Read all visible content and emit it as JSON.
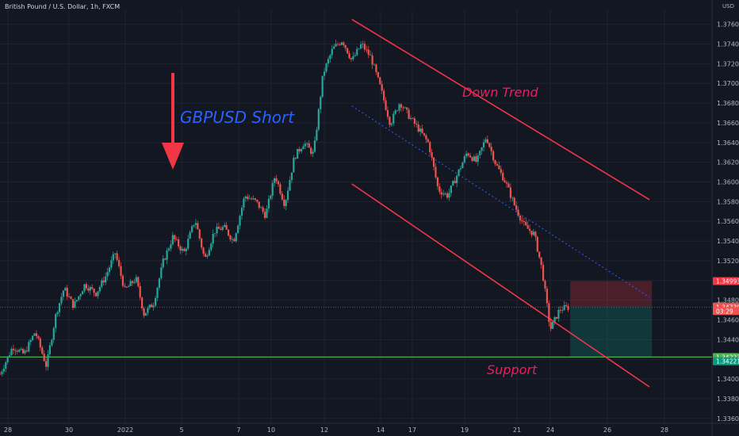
{
  "header": {
    "symbol": "British Pound / U.S. Dollar, 1h, FXCM",
    "currency": "USD"
  },
  "colors": {
    "background": "#131722",
    "grid": "#1f2330",
    "up": "#26a69a",
    "down": "#ef5350",
    "channel": "#f23645",
    "support": "#4caf50",
    "title": "#2962ff",
    "label": "#e91e63",
    "arrow": "#f23645"
  },
  "icons": {
    "scale": "usd-currency-badge"
  },
  "chart_data": {
    "type": "candlestick",
    "title": "GBPUSD Short",
    "x_ticks": [
      "28",
      "30",
      "2022",
      "5",
      "7",
      "10",
      "12",
      "14",
      "17",
      "19",
      "21",
      "24",
      "26",
      "28"
    ],
    "y_ticks": [
      "1.37600",
      "1.37400",
      "1.37200",
      "1.37000",
      "1.36800",
      "1.36600",
      "1.36400",
      "1.36200",
      "1.36000",
      "1.35800",
      "1.35600",
      "1.35400",
      "1.35200",
      "1.35000",
      "1.34800",
      "1.34600",
      "1.34400",
      "1.34200",
      "1.34000",
      "1.33800",
      "1.33600"
    ],
    "ylim": [
      1.3355,
      1.3775
    ],
    "price_path": [
      [
        0,
        1.3405
      ],
      [
        0.8,
        1.3433
      ],
      [
        1.5,
        1.3425
      ],
      [
        2.2,
        1.3448
      ],
      [
        2.9,
        1.3413
      ],
      [
        3.5,
        1.3466
      ],
      [
        4.0,
        1.3492
      ],
      [
        4.6,
        1.3474
      ],
      [
        5.3,
        1.3496
      ],
      [
        6.0,
        1.3487
      ],
      [
        6.6,
        1.3504
      ],
      [
        7.2,
        1.3528
      ],
      [
        7.8,
        1.349
      ],
      [
        8.5,
        1.3502
      ],
      [
        9.0,
        1.3466
      ],
      [
        9.6,
        1.3477
      ],
      [
        10.2,
        1.3519
      ],
      [
        10.8,
        1.3544
      ],
      [
        11.5,
        1.3528
      ],
      [
        12.2,
        1.3562
      ],
      [
        12.8,
        1.3521
      ],
      [
        13.4,
        1.355
      ],
      [
        14.0,
        1.3554
      ],
      [
        14.6,
        1.354
      ],
      [
        15.3,
        1.3586
      ],
      [
        16.0,
        1.358
      ],
      [
        16.6,
        1.3566
      ],
      [
        17.2,
        1.3607
      ],
      [
        17.8,
        1.3577
      ],
      [
        18.4,
        1.3625
      ],
      [
        19.0,
        1.364
      ],
      [
        19.6,
        1.3628
      ],
      [
        20.2,
        1.371
      ],
      [
        20.8,
        1.3735
      ],
      [
        21.4,
        1.3744
      ],
      [
        22.0,
        1.3723
      ],
      [
        22.6,
        1.374
      ],
      [
        23.2,
        1.3726
      ],
      [
        23.8,
        1.3695
      ],
      [
        24.4,
        1.3659
      ],
      [
        25.0,
        1.3681
      ],
      [
        25.6,
        1.3666
      ],
      [
        26.2,
        1.3653
      ],
      [
        26.8,
        1.3639
      ],
      [
        27.4,
        1.3592
      ],
      [
        28.0,
        1.3586
      ],
      [
        28.6,
        1.3608
      ],
      [
        29.2,
        1.363
      ],
      [
        29.8,
        1.362
      ],
      [
        30.4,
        1.3646
      ],
      [
        31.0,
        1.3618
      ],
      [
        31.6,
        1.36
      ],
      [
        32.2,
        1.3575
      ],
      [
        32.8,
        1.3555
      ],
      [
        33.4,
        1.3547
      ],
      [
        33.9,
        1.351
      ],
      [
        34.4,
        1.345
      ],
      [
        35.0,
        1.3471
      ],
      [
        35.6,
        1.3473
      ]
    ],
    "annotations": {
      "title": "GBPUSD Short",
      "trend_label": "Down Trend",
      "support_label": "Support"
    },
    "price_labels": [
      {
        "label": "1.34993",
        "value": 1.34993,
        "role": "stop-loss"
      },
      {
        "label": "1.34736",
        "value": 1.34736,
        "role": "entry"
      },
      {
        "label": "1.34730",
        "value": 1.3473,
        "role": "last-price"
      },
      {
        "label": "03:29",
        "value": 1.3469,
        "role": "countdown"
      },
      {
        "label": "1.34223",
        "value": 1.34223,
        "role": "support"
      },
      {
        "label": "1.34221",
        "value": 1.3418,
        "role": "target"
      }
    ],
    "trade_box": {
      "entry": 1.34736,
      "stop": 1.34993,
      "target": 1.34221
    },
    "support_level": 1.34223,
    "last_price": 1.3473,
    "channel": {
      "upper": [
        [
          22.0,
          1.3765
        ],
        [
          40.6,
          1.3582
        ]
      ],
      "lower": [
        [
          22.0,
          1.3598
        ],
        [
          40.6,
          1.3392
        ]
      ],
      "mid": [
        [
          22.0,
          1.3677
        ],
        [
          40.6,
          1.3483
        ]
      ]
    },
    "grid": true
  }
}
